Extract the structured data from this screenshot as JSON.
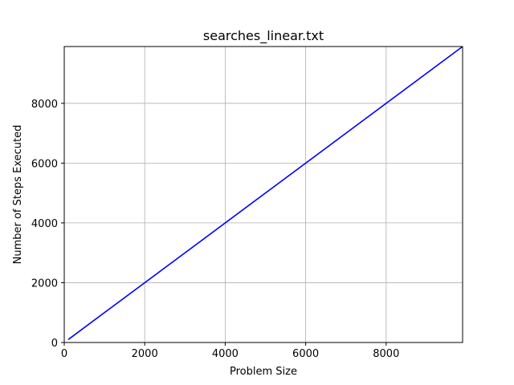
{
  "chart_data": {
    "type": "line",
    "title": "searches_linear.txt",
    "xlabel": "Problem Size",
    "ylabel": "Number of Steps Executed",
    "xlim": [
      0,
      9900
    ],
    "ylim": [
      0,
      9900
    ],
    "grid": true,
    "x_ticks": [
      0,
      2000,
      4000,
      6000,
      8000
    ],
    "y_ticks": [
      0,
      2000,
      4000,
      6000,
      8000
    ],
    "series": [
      {
        "color": "#0000ff",
        "x": [
          100,
          9900
        ],
        "y": [
          100,
          9900
        ]
      }
    ]
  }
}
